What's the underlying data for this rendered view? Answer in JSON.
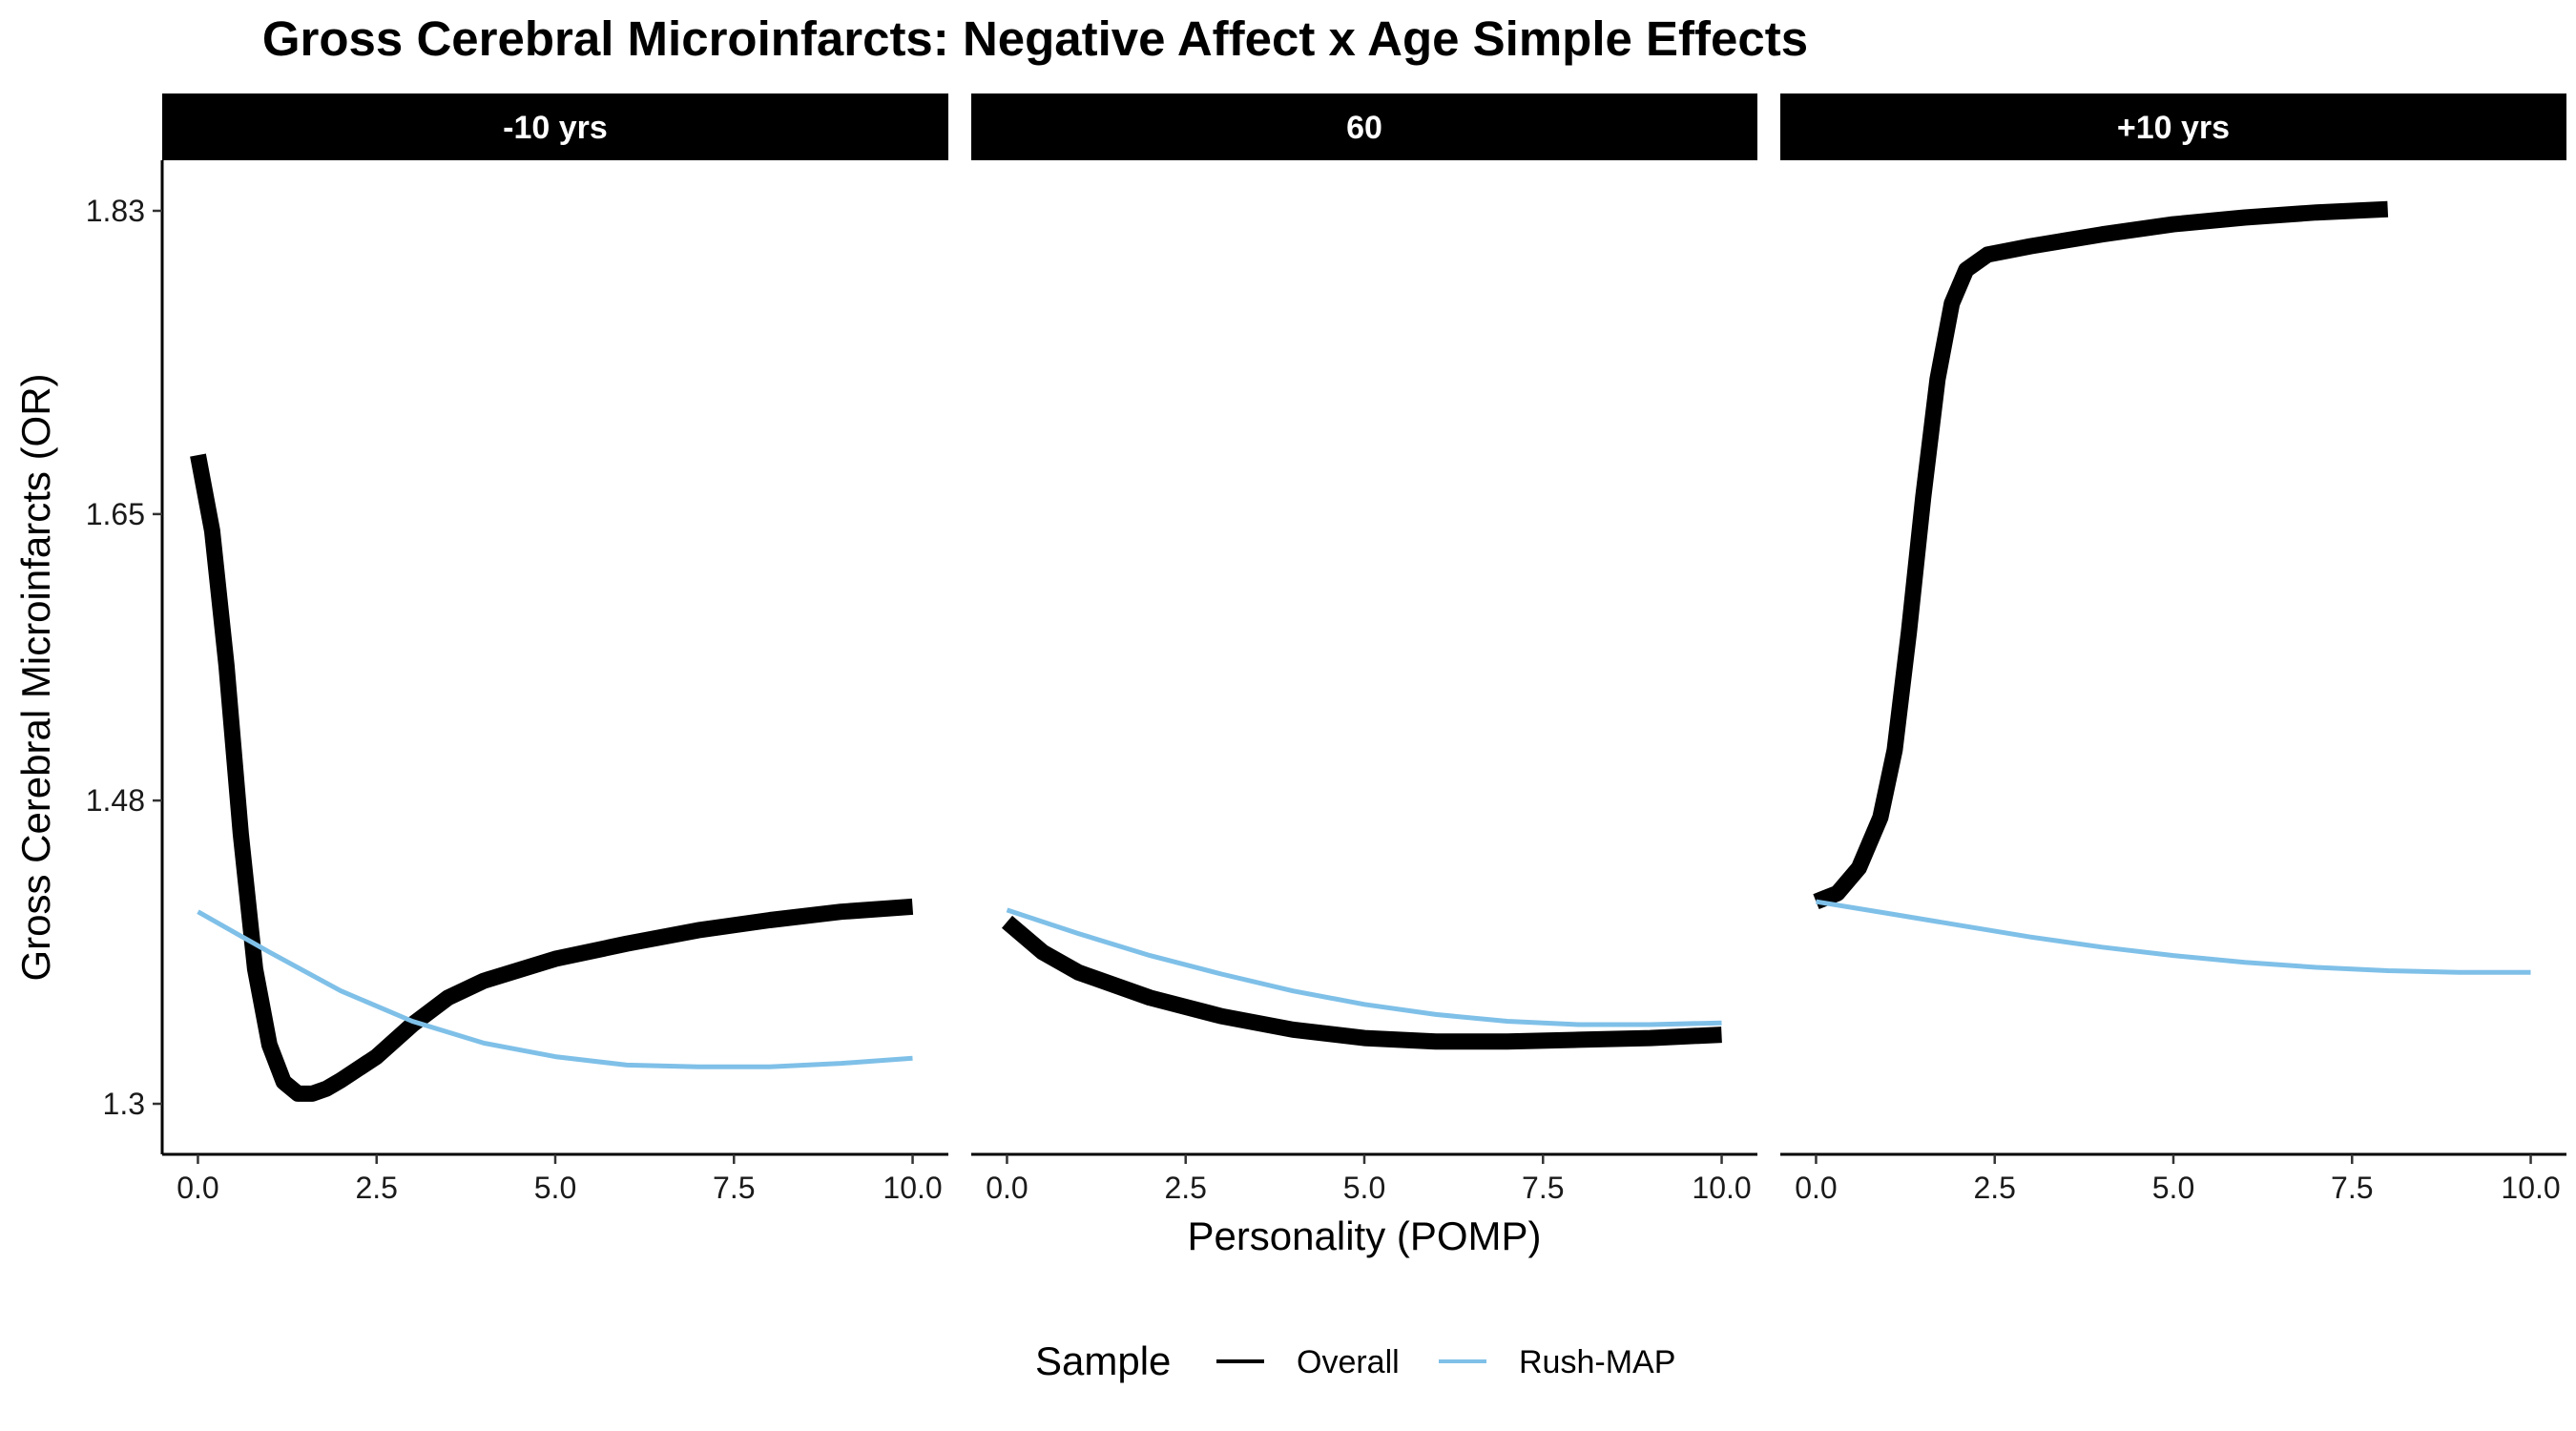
{
  "chart_data": {
    "type": "line",
    "title": "Gross Cerebral Microinfarcts: Negative Affect x Age Simple Effects",
    "xlabel": "Personality (POMP)",
    "ylabel": "Gross Cerebral Microinfarcts (OR)",
    "xlim": [
      -0.5,
      10.5
    ],
    "ylim": [
      1.27,
      1.86
    ],
    "x_ticks": [
      0,
      2.5,
      5,
      7.5,
      10
    ],
    "x_tick_labels": [
      "0.0",
      "2.5",
      "5.0",
      "7.5",
      "10.0"
    ],
    "y_ticks": [
      1.3,
      1.48,
      1.65,
      1.83
    ],
    "y_tick_labels": [
      "1.3",
      "1.48",
      "1.65",
      "1.83"
    ],
    "grid": false,
    "legend": {
      "title": "Sample",
      "position": "bottom",
      "entries": [
        {
          "name": "Overall",
          "color": "#000000",
          "style": "thick"
        },
        {
          "name": "Rush-MAP",
          "color": "#7fc0e8",
          "style": "thin"
        }
      ]
    },
    "panels": [
      {
        "label": "-10 yrs",
        "series": [
          {
            "name": "Overall",
            "points": [
              [
                0,
                1.685
              ],
              [
                0.2,
                1.64
              ],
              [
                0.4,
                1.56
              ],
              [
                0.6,
                1.46
              ],
              [
                0.8,
                1.38
              ],
              [
                1.0,
                1.335
              ],
              [
                1.2,
                1.313
              ],
              [
                1.4,
                1.306
              ],
              [
                1.6,
                1.306
              ],
              [
                1.8,
                1.309
              ],
              [
                2.0,
                1.314
              ],
              [
                2.5,
                1.328
              ],
              [
                3.0,
                1.347
              ],
              [
                3.5,
                1.363
              ],
              [
                4.0,
                1.373
              ],
              [
                5.0,
                1.386
              ],
              [
                6.0,
                1.395
              ],
              [
                7.0,
                1.403
              ],
              [
                8.0,
                1.409
              ],
              [
                9.0,
                1.414
              ],
              [
                10.0,
                1.417
              ]
            ]
          },
          {
            "name": "Rush-MAP",
            "points": [
              [
                0,
                1.414
              ],
              [
                1,
                1.39
              ],
              [
                2,
                1.367
              ],
              [
                3,
                1.349
              ],
              [
                4,
                1.336
              ],
              [
                5,
                1.328
              ],
              [
                6,
                1.323
              ],
              [
                7,
                1.322
              ],
              [
                8,
                1.322
              ],
              [
                9,
                1.324
              ],
              [
                10,
                1.327
              ]
            ]
          }
        ]
      },
      {
        "label": "60",
        "series": [
          {
            "name": "Overall",
            "points": [
              [
                0,
                1.408
              ],
              [
                0.5,
                1.39
              ],
              [
                1,
                1.378
              ],
              [
                2,
                1.363
              ],
              [
                3,
                1.352
              ],
              [
                4,
                1.344
              ],
              [
                5,
                1.339
              ],
              [
                6,
                1.337
              ],
              [
                7,
                1.337
              ],
              [
                8,
                1.338
              ],
              [
                9,
                1.339
              ],
              [
                10,
                1.341
              ]
            ]
          },
          {
            "name": "Rush-MAP",
            "points": [
              [
                0,
                1.415
              ],
              [
                1,
                1.401
              ],
              [
                2,
                1.388
              ],
              [
                3,
                1.377
              ],
              [
                4,
                1.367
              ],
              [
                5,
                1.359
              ],
              [
                6,
                1.353
              ],
              [
                7,
                1.349
              ],
              [
                8,
                1.347
              ],
              [
                9,
                1.347
              ],
              [
                10,
                1.348
              ]
            ]
          }
        ]
      },
      {
        "label": "+10 yrs",
        "series": [
          {
            "name": "Overall",
            "points": [
              [
                0,
                1.42
              ],
              [
                0.3,
                1.425
              ],
              [
                0.6,
                1.44
              ],
              [
                0.9,
                1.47
              ],
              [
                1.1,
                1.51
              ],
              [
                1.3,
                1.58
              ],
              [
                1.5,
                1.66
              ],
              [
                1.7,
                1.73
              ],
              [
                1.9,
                1.775
              ],
              [
                2.1,
                1.795
              ],
              [
                2.4,
                1.804
              ],
              [
                3.0,
                1.809
              ],
              [
                4.0,
                1.816
              ],
              [
                5.0,
                1.822
              ],
              [
                6.0,
                1.826
              ],
              [
                7.0,
                1.829
              ],
              [
                8.0,
                1.831
              ]
            ]
          },
          {
            "name": "Rush-MAP",
            "points": [
              [
                0,
                1.42
              ],
              [
                1,
                1.413
              ],
              [
                2,
                1.406
              ],
              [
                3,
                1.399
              ],
              [
                4,
                1.393
              ],
              [
                5,
                1.388
              ],
              [
                6,
                1.384
              ],
              [
                7,
                1.381
              ],
              [
                8,
                1.379
              ],
              [
                9,
                1.378
              ],
              [
                10,
                1.378
              ]
            ]
          }
        ]
      }
    ]
  }
}
